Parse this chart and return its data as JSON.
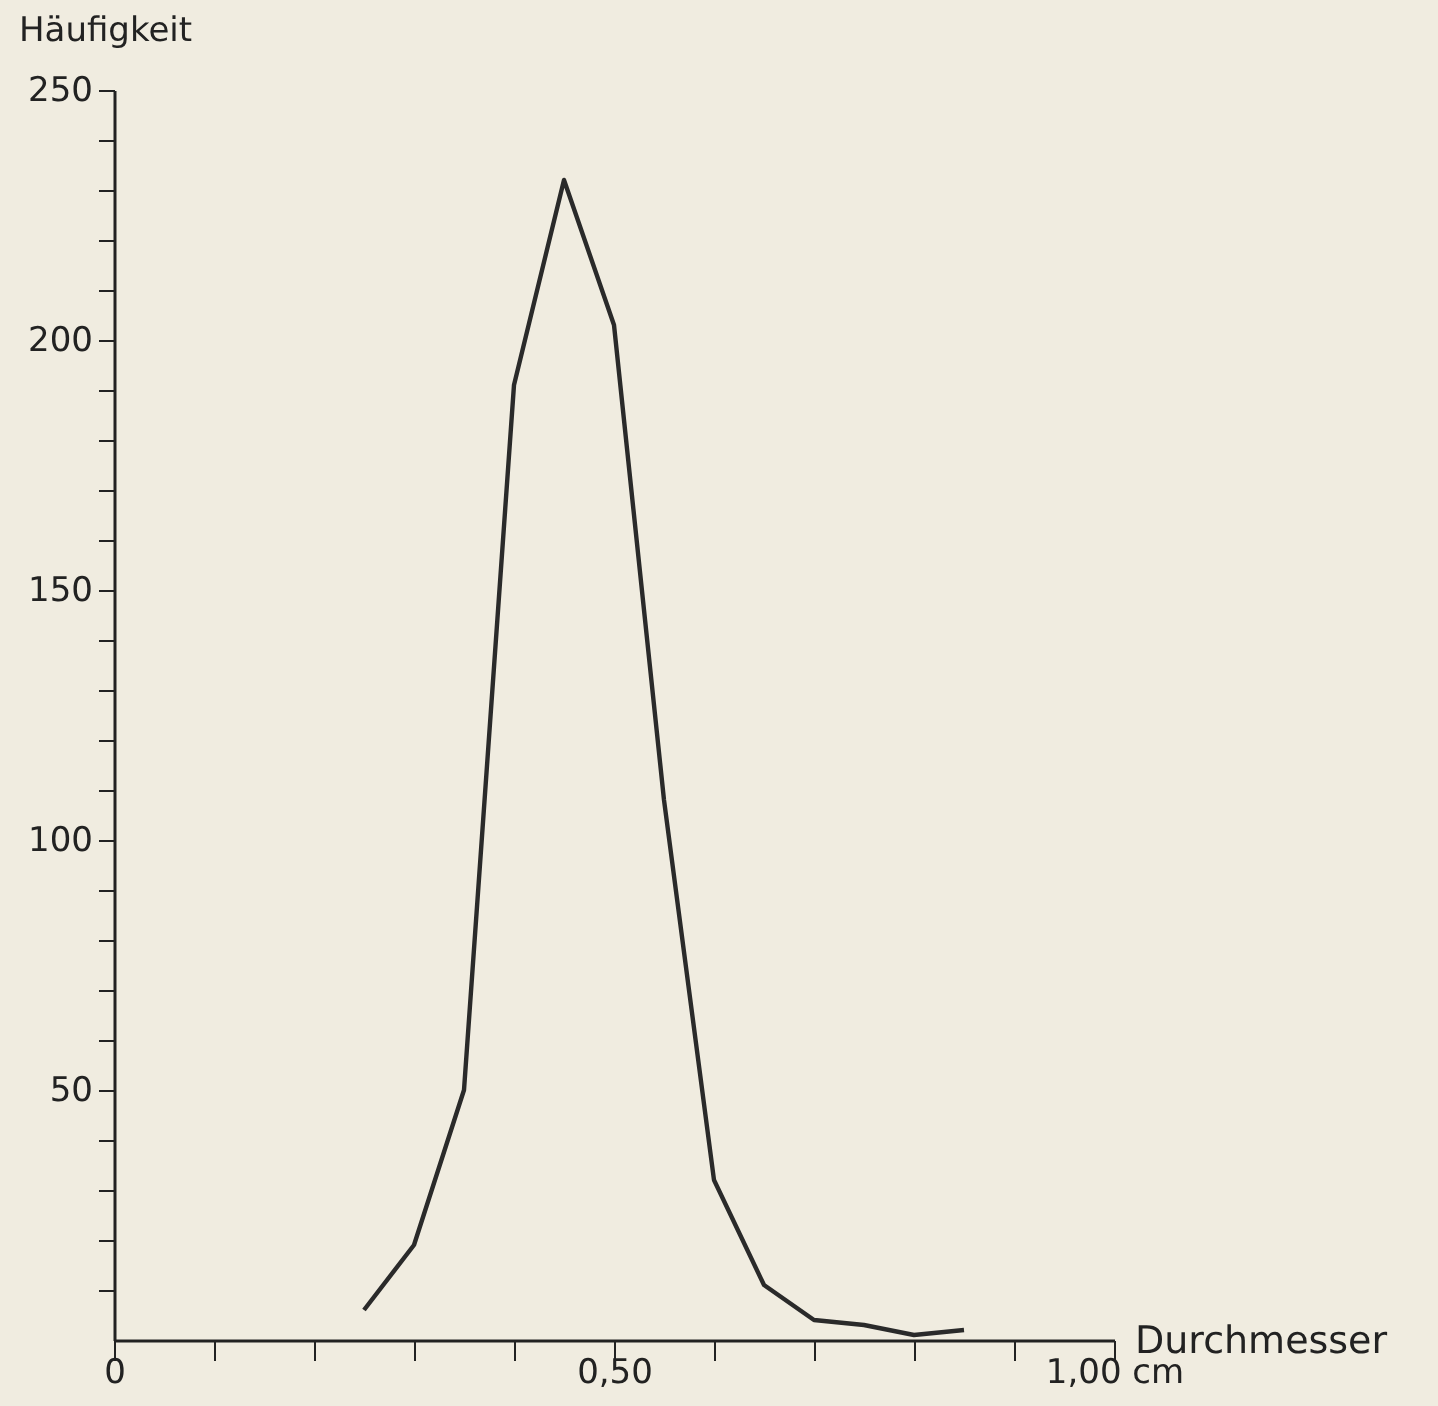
{
  "chart_data": {
    "type": "line",
    "xlabel": "Durchmesser",
    "ylabel": "Häufigkeit",
    "x": [
      0.25,
      0.3,
      0.35,
      0.4,
      0.45,
      0.5,
      0.55,
      0.6,
      0.65,
      0.7,
      0.75,
      0.8,
      0.85
    ],
    "series": [
      {
        "color": "#2a2a2a",
        "values": [
          6,
          19,
          50,
          191,
          232,
          203,
          108,
          32,
          11,
          4,
          3,
          1,
          2
        ]
      }
    ],
    "xlim": [
      0,
      1
    ],
    "ylim": [
      0,
      250
    ],
    "xticks": [
      0,
      {
        "value": 0.1,
        "label": null
      },
      {
        "value": 0.2,
        "label": null
      },
      {
        "value": 0.3,
        "label": null
      },
      {
        "value": 0.4,
        "label": null
      },
      {
        "value": 0.5,
        "label": "0,50"
      },
      {
        "value": 0.6,
        "label": null
      },
      {
        "value": 0.7,
        "label": null
      },
      {
        "value": 0.8,
        "label": null
      },
      {
        "value": 0.9,
        "label": null
      },
      {
        "value": 1,
        "label": "1,00 cm"
      }
    ],
    "yticks": [
      {
        "value": 10,
        "label": null
      },
      {
        "value": 20,
        "label": null
      },
      {
        "value": 30,
        "label": null
      },
      {
        "value": 40,
        "label": null
      },
      50,
      {
        "value": 60,
        "label": null
      },
      {
        "value": 70,
        "label": null
      },
      {
        "value": 80,
        "label": null
      },
      {
        "value": 90,
        "label": null
      },
      100,
      {
        "value": 110,
        "label": null
      },
      {
        "value": 120,
        "label": null
      },
      {
        "value": 130,
        "label": null
      },
      {
        "value": 140,
        "label": null
      },
      150,
      {
        "value": 160,
        "label": null
      },
      {
        "value": 170,
        "label": null
      },
      {
        "value": 180,
        "label": null
      },
      {
        "value": 190,
        "label": null
      },
      200,
      {
        "value": 210,
        "label": null
      },
      {
        "value": 220,
        "label": null
      },
      {
        "value": 230,
        "label": null
      },
      {
        "value": 240,
        "label": null
      },
      250
    ],
    "grid": false,
    "marker": "none",
    "line_style": "solid"
  }
}
